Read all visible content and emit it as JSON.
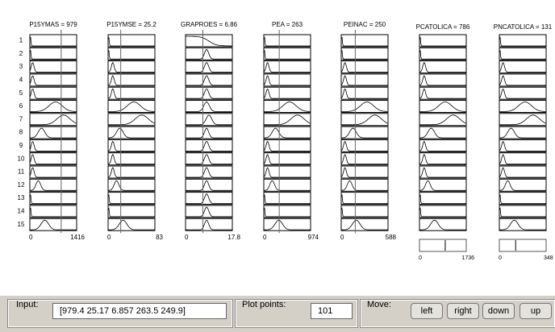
{
  "columns": [
    {
      "header": "P15YMAS = 979",
      "axis_min": "0",
      "axis_max": "1416"
    },
    {
      "header": "P15YMSE = 25.2",
      "axis_min": "0",
      "axis_max": "83"
    },
    {
      "header": "GRAPROES = 6.86",
      "axis_min": "0",
      "axis_max": "17.8"
    },
    {
      "header": "PEA = 263",
      "axis_min": "0",
      "axis_max": "974"
    },
    {
      "header": "PEINAC = 250",
      "axis_min": "0",
      "axis_max": "588"
    },
    {
      "header": "PCATOLICA = 786",
      "axis_min": "0",
      "axis_max": "1736"
    },
    {
      "header": "PNCATOLICA = 131",
      "axis_min": "0",
      "axis_max": "348"
    }
  ],
  "rows": [
    "1",
    "2",
    "3",
    "4",
    "5",
    "6",
    "7",
    "8",
    "9",
    "10",
    "11",
    "12",
    "13",
    "14",
    "15"
  ],
  "panel": {
    "input_label": "Input:",
    "input_value": "[979.4 25.17 6.857 263.5 249.9]",
    "plot_points_label": "Plot points:",
    "plot_points_value": "101",
    "move_label": "Move:",
    "buttons": [
      "left",
      "right",
      "down",
      "up"
    ]
  }
}
